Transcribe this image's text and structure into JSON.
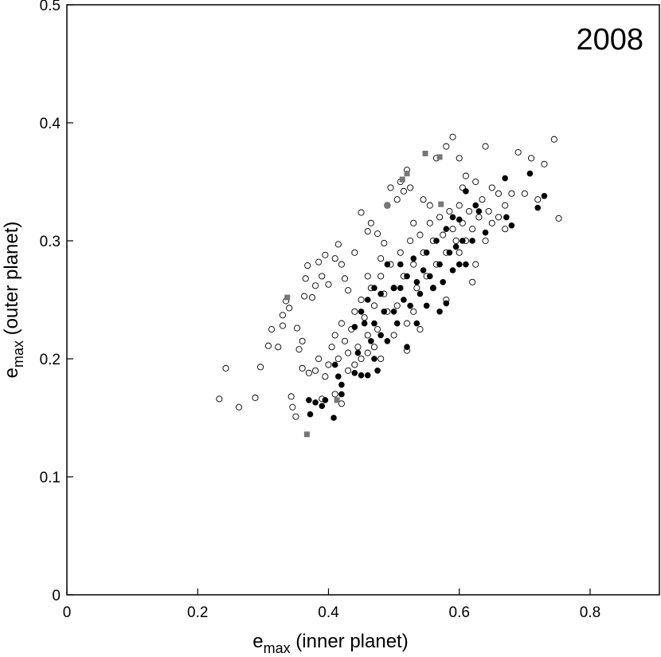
{
  "chart_data": {
    "type": "scatter",
    "annotation": "2008",
    "x_label": [
      "e",
      "max",
      " (inner planet)"
    ],
    "y_label": [
      "e",
      "max",
      " (outer planet)"
    ],
    "xlim": [
      0,
      0.906
    ],
    "ylim": [
      0,
      0.5
    ],
    "xticks": [
      0,
      0.2,
      0.4,
      0.6,
      0.8
    ],
    "yticks": [
      0,
      0.1,
      0.2,
      0.3,
      0.4,
      0.5
    ],
    "series": [
      {
        "marker": "circle-open",
        "color": "#000000",
        "x": [
          0.233,
          0.243,
          0.263,
          0.288,
          0.296,
          0.308,
          0.313,
          0.323,
          0.33,
          0.33,
          0.335,
          0.34,
          0.343,
          0.345,
          0.35,
          0.352,
          0.355,
          0.36,
          0.36,
          0.363,
          0.365,
          0.368,
          0.375,
          0.38,
          0.385,
          0.39,
          0.395,
          0.4,
          0.41,
          0.415,
          0.42,
          0.425,
          0.43,
          0.44,
          0.45,
          0.46,
          0.465,
          0.475,
          0.485,
          0.49,
          0.495,
          0.505,
          0.51,
          0.515,
          0.52,
          0.525,
          0.53,
          0.545,
          0.555,
          0.565,
          0.58,
          0.59,
          0.6,
          0.605,
          0.61,
          0.625,
          0.64,
          0.65,
          0.66,
          0.67,
          0.68,
          0.69,
          0.7,
          0.71,
          0.72,
          0.73,
          0.745,
          0.752,
          0.37,
          0.38,
          0.385,
          0.39,
          0.395,
          0.4,
          0.405,
          0.41,
          0.415,
          0.42,
          0.425,
          0.43,
          0.435,
          0.44,
          0.445,
          0.45,
          0.455,
          0.46,
          0.465,
          0.47,
          0.475,
          0.48,
          0.485,
          0.49,
          0.495,
          0.5,
          0.505,
          0.51,
          0.515,
          0.52,
          0.525,
          0.53,
          0.535,
          0.54,
          0.545,
          0.55,
          0.555,
          0.56,
          0.565,
          0.57,
          0.575,
          0.58,
          0.585,
          0.59,
          0.595,
          0.6,
          0.605,
          0.61,
          0.615,
          0.62,
          0.625,
          0.63,
          0.635,
          0.64,
          0.645,
          0.65,
          0.66,
          0.67,
          0.44,
          0.45,
          0.46,
          0.47,
          0.48,
          0.5,
          0.53,
          0.56,
          0.58,
          0.6,
          0.62,
          0.54,
          0.52,
          0.41,
          0.42,
          0.43,
          0.48,
          0.46
        ],
        "values": [
          0.166,
          0.192,
          0.159,
          0.167,
          0.193,
          0.211,
          0.225,
          0.21,
          0.228,
          0.237,
          0.249,
          0.243,
          0.168,
          0.159,
          0.151,
          0.226,
          0.208,
          0.192,
          0.215,
          0.253,
          0.268,
          0.279,
          0.252,
          0.262,
          0.282,
          0.27,
          0.288,
          0.263,
          0.285,
          0.297,
          0.28,
          0.268,
          0.258,
          0.29,
          0.324,
          0.308,
          0.315,
          0.306,
          0.298,
          0.33,
          0.345,
          0.335,
          0.35,
          0.342,
          0.36,
          0.345,
          0.315,
          0.335,
          0.33,
          0.37,
          0.38,
          0.388,
          0.37,
          0.345,
          0.355,
          0.35,
          0.38,
          0.345,
          0.34,
          0.33,
          0.34,
          0.375,
          0.34,
          0.37,
          0.335,
          0.365,
          0.386,
          0.319,
          0.188,
          0.19,
          0.2,
          0.166,
          0.185,
          0.195,
          0.21,
          0.22,
          0.2,
          0.23,
          0.215,
          0.205,
          0.225,
          0.24,
          0.21,
          0.25,
          0.235,
          0.22,
          0.26,
          0.245,
          0.225,
          0.27,
          0.255,
          0.24,
          0.28,
          0.26,
          0.245,
          0.29,
          0.27,
          0.23,
          0.3,
          0.28,
          0.26,
          0.305,
          0.29,
          0.27,
          0.315,
          0.3,
          0.28,
          0.32,
          0.305,
          0.29,
          0.325,
          0.31,
          0.3,
          0.33,
          0.315,
          0.3,
          0.325,
          0.31,
          0.28,
          0.32,
          0.335,
          0.3,
          0.325,
          0.315,
          0.32,
          0.31,
          0.195,
          0.2,
          0.205,
          0.21,
          0.2,
          0.22,
          0.24,
          0.26,
          0.25,
          0.29,
          0.265,
          0.225,
          0.207,
          0.17,
          0.162,
          0.19,
          0.285,
          0.27
        ]
      },
      {
        "marker": "circle",
        "color": "#000000",
        "x": [
          0.37,
          0.372,
          0.38,
          0.39,
          0.395,
          0.408,
          0.41,
          0.415,
          0.42,
          0.42,
          0.44,
          0.445,
          0.45,
          0.46,
          0.465,
          0.47,
          0.475,
          0.48,
          0.44,
          0.45,
          0.46,
          0.47,
          0.49,
          0.49,
          0.5,
          0.505,
          0.51,
          0.515,
          0.52,
          0.525,
          0.53,
          0.535,
          0.54,
          0.545,
          0.55,
          0.555,
          0.56,
          0.565,
          0.57,
          0.575,
          0.58,
          0.585,
          0.59,
          0.595,
          0.6,
          0.605,
          0.61,
          0.62,
          0.625,
          0.63,
          0.67,
          0.672,
          0.68,
          0.708,
          0.72,
          0.73,
          0.61,
          0.64,
          0.5,
          0.48,
          0.47,
          0.535,
          0.52,
          0.55,
          0.59,
          0.6,
          0.57,
          0.58,
          0.485,
          0.455,
          0.51
        ],
        "values": [
          0.165,
          0.153,
          0.163,
          0.16,
          0.165,
          0.15,
          0.195,
          0.185,
          0.17,
          0.178,
          0.188,
          0.205,
          0.186,
          0.186,
          0.215,
          0.2,
          0.19,
          0.22,
          0.227,
          0.24,
          0.25,
          0.23,
          0.28,
          0.215,
          0.24,
          0.23,
          0.26,
          0.25,
          0.27,
          0.245,
          0.285,
          0.265,
          0.255,
          0.275,
          0.29,
          0.27,
          0.26,
          0.3,
          0.28,
          0.265,
          0.247,
          0.29,
          0.275,
          0.295,
          0.28,
          0.3,
          0.28,
          0.3,
          0.33,
          0.325,
          0.353,
          0.32,
          0.313,
          0.357,
          0.328,
          0.338,
          0.342,
          0.307,
          0.26,
          0.255,
          0.26,
          0.23,
          0.21,
          0.245,
          0.32,
          0.318,
          0.24,
          0.31,
          0.24,
          0.23,
          0.28
        ]
      },
      {
        "marker": "square",
        "color": "#777777",
        "x": [
          0.337,
          0.367,
          0.413,
          0.49,
          0.513,
          0.52,
          0.548,
          0.57,
          0.572
        ],
        "values": [
          0.252,
          0.136,
          0.165,
          0.33,
          0.352,
          0.357,
          0.374,
          0.371,
          0.331
        ]
      }
    ]
  }
}
